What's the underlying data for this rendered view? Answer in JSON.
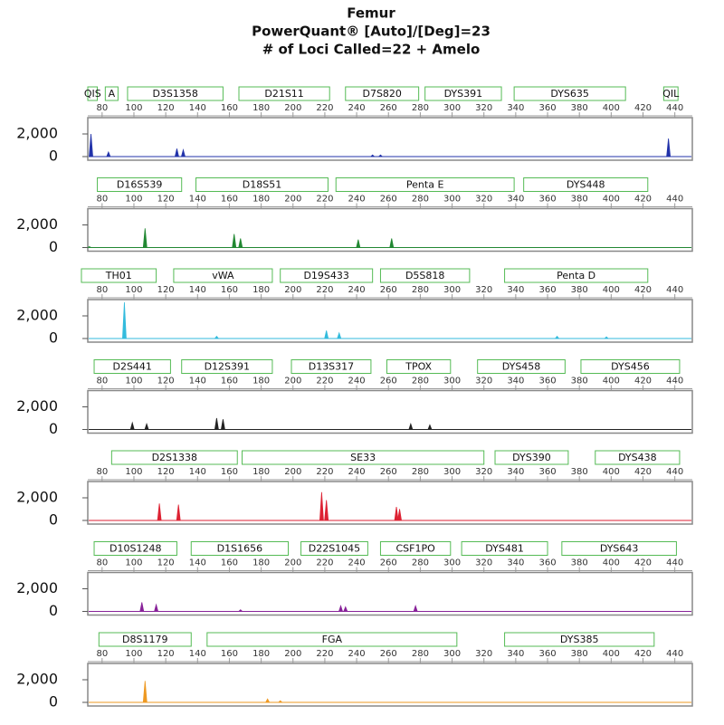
{
  "header": {
    "title": "Femur",
    "subtitle": [
      "PowerQuant® [Auto]/[Deg]=23",
      "# of Loci Called=22 + Amelo"
    ]
  },
  "chart_data": [
    {
      "type": "spike",
      "color": "#2233aa",
      "xlim": [
        71,
        451
      ],
      "ylim": [
        -320,
        3440
      ],
      "xticks": [
        80,
        100,
        120,
        140,
        160,
        180,
        200,
        220,
        240,
        260,
        280,
        300,
        320,
        340,
        360,
        380,
        400,
        420,
        440
      ],
      "yticks": [
        0,
        {
          "value": 2000,
          "label": "2,000"
        }
      ],
      "loci": [
        {
          "label": "QIS",
          "start": 71,
          "end": 77
        },
        {
          "label": "A",
          "start": 82,
          "end": 90
        },
        {
          "label": "D3S1358",
          "start": 96,
          "end": 156
        },
        {
          "label": "D21S11",
          "start": 166,
          "end": 223
        },
        {
          "label": "D7S820",
          "start": 233,
          "end": 279
        },
        {
          "label": "DYS391",
          "start": 283,
          "end": 331
        },
        {
          "label": "DYS635",
          "start": 339,
          "end": 409
        },
        {
          "label": "QIL",
          "start": 433,
          "end": 442
        }
      ],
      "x": [
        73,
        84,
        127,
        131,
        250,
        255,
        436
      ],
      "values": [
        2000,
        400,
        700,
        600,
        150,
        150,
        1600
      ]
    },
    {
      "type": "spike",
      "color": "#228833",
      "xlim": [
        71,
        451
      ],
      "ylim": [
        -320,
        3440
      ],
      "xticks": [
        80,
        100,
        120,
        140,
        160,
        180,
        200,
        220,
        240,
        260,
        280,
        300,
        320,
        340,
        360,
        380,
        400,
        420,
        440
      ],
      "yticks": [
        0,
        {
          "value": 2000,
          "label": "2,000"
        }
      ],
      "loci": [
        {
          "label": "D16S539",
          "start": 77,
          "end": 130
        },
        {
          "label": "D18S51",
          "start": 139,
          "end": 222
        },
        {
          "label": "Penta E",
          "start": 227,
          "end": 339
        },
        {
          "label": "DYS448",
          "start": 345,
          "end": 423
        }
      ],
      "x": [
        72,
        107,
        163,
        167,
        241,
        262
      ],
      "values": [
        80,
        1700,
        1200,
        800,
        700,
        800
      ]
    },
    {
      "type": "spike",
      "color": "#33bbdd",
      "xlim": [
        71,
        451
      ],
      "ylim": [
        -320,
        3440
      ],
      "xticks": [
        80,
        100,
        120,
        140,
        160,
        180,
        200,
        220,
        240,
        260,
        280,
        300,
        320,
        340,
        360,
        380,
        400,
        420,
        440
      ],
      "yticks": [
        0,
        {
          "value": 2000,
          "label": "2,000"
        }
      ],
      "loci": [
        {
          "label": "TH01",
          "start": 67,
          "end": 114
        },
        {
          "label": "vWA",
          "start": 125,
          "end": 187
        },
        {
          "label": "D19S433",
          "start": 192,
          "end": 250
        },
        {
          "label": "D5S818",
          "start": 255,
          "end": 311
        },
        {
          "label": "Penta D",
          "start": 333,
          "end": 423
        }
      ],
      "x": [
        94,
        152,
        221,
        229,
        366,
        397
      ],
      "values": [
        3200,
        200,
        700,
        500,
        200,
        150
      ]
    },
    {
      "type": "spike",
      "color": "#222222",
      "xlim": [
        71,
        451
      ],
      "ylim": [
        -320,
        3440
      ],
      "xticks": [
        80,
        100,
        120,
        140,
        160,
        180,
        200,
        220,
        240,
        260,
        280,
        300,
        320,
        340,
        360,
        380,
        400,
        420,
        440
      ],
      "yticks": [
        0,
        {
          "value": 2000,
          "label": "2,000"
        }
      ],
      "loci": [
        {
          "label": "D2S441",
          "start": 75,
          "end": 123
        },
        {
          "label": "D12S391",
          "start": 130,
          "end": 187
        },
        {
          "label": "D13S317",
          "start": 199,
          "end": 249
        },
        {
          "label": "TPOX",
          "start": 259,
          "end": 299
        },
        {
          "label": "DYS458",
          "start": 316,
          "end": 371
        },
        {
          "label": "DYS456",
          "start": 381,
          "end": 443
        }
      ],
      "x": [
        99,
        108,
        152,
        156,
        274,
        286
      ],
      "values": [
        600,
        500,
        1000,
        900,
        500,
        400
      ]
    },
    {
      "type": "spike",
      "color": "#dd2233",
      "xlim": [
        71,
        451
      ],
      "ylim": [
        -320,
        3440
      ],
      "xticks": [
        80,
        100,
        120,
        140,
        160,
        180,
        200,
        220,
        240,
        260,
        280,
        300,
        320,
        340,
        360,
        380,
        400,
        420,
        440
      ],
      "yticks": [
        0,
        {
          "value": 2000,
          "label": "2,000"
        }
      ],
      "loci": [
        {
          "label": "D2S1338",
          "start": 86,
          "end": 165
        },
        {
          "label": "SE33",
          "start": 168,
          "end": 320
        },
        {
          "label": "DYS390",
          "start": 327,
          "end": 373
        },
        {
          "label": "DYS438",
          "start": 390,
          "end": 443
        }
      ],
      "x": [
        116,
        128,
        218,
        221,
        265,
        267
      ],
      "values": [
        1500,
        1400,
        2500,
        1800,
        1200,
        1000
      ]
    },
    {
      "type": "spike",
      "color": "#882299",
      "xlim": [
        71,
        451
      ],
      "ylim": [
        -320,
        3440
      ],
      "xticks": [
        80,
        100,
        120,
        140,
        160,
        180,
        200,
        220,
        240,
        260,
        280,
        300,
        320,
        340,
        360,
        380,
        400,
        420,
        440
      ],
      "yticks": [
        0,
        {
          "value": 2000,
          "label": "2,000"
        }
      ],
      "loci": [
        {
          "label": "D10S1248",
          "start": 75,
          "end": 127
        },
        {
          "label": "D1S1656",
          "start": 136,
          "end": 197
        },
        {
          "label": "D22S1045",
          "start": 205,
          "end": 247
        },
        {
          "label": "CSF1PO",
          "start": 255,
          "end": 299
        },
        {
          "label": "DYS481",
          "start": 306,
          "end": 360
        },
        {
          "label": "DYS643",
          "start": 369,
          "end": 441
        }
      ],
      "x": [
        105,
        114,
        167,
        230,
        233,
        277
      ],
      "values": [
        800,
        600,
        150,
        500,
        400,
        500
      ]
    },
    {
      "type": "spike",
      "color": "#ee9922",
      "xlim": [
        71,
        451
      ],
      "ylim": [
        -320,
        3440
      ],
      "xticks": [
        80,
        100,
        120,
        140,
        160,
        180,
        200,
        220,
        240,
        260,
        280,
        300,
        320,
        340,
        360,
        380,
        400,
        420,
        440
      ],
      "yticks": [
        0,
        {
          "value": 2000,
          "label": "2,000"
        }
      ],
      "loci": [
        {
          "label": "D8S1179",
          "start": 78,
          "end": 136
        },
        {
          "label": "FGA",
          "start": 146,
          "end": 303
        },
        {
          "label": "DYS385",
          "start": 333,
          "end": 427
        }
      ],
      "x": [
        107,
        184,
        192
      ],
      "values": [
        1900,
        300,
        150
      ]
    }
  ]
}
